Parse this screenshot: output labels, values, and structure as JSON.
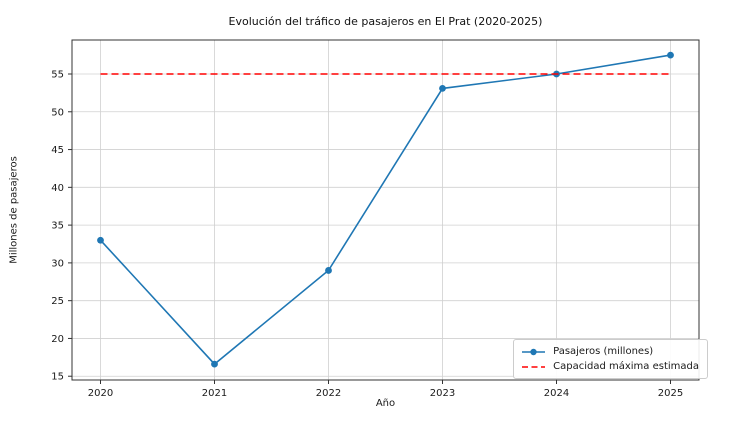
{
  "figure": {
    "background": "#ffffff"
  },
  "chart_data": {
    "type": "line",
    "title": "Evolución del tráfico de pasajeros en El Prat (2020-2025)",
    "xlabel": "Año",
    "ylabel": "Millones de pasajeros",
    "x": [
      2020,
      2021,
      2022,
      2023,
      2024,
      2025
    ],
    "xticks": [
      "2020",
      "2021",
      "2022",
      "2023",
      "2024",
      "2025"
    ],
    "yticks": [
      15,
      20,
      25,
      30,
      35,
      40,
      45,
      50,
      55
    ],
    "xlim": [
      2019.75,
      2025.25
    ],
    "ylim": [
      14.5,
      59.5
    ],
    "grid": true,
    "legend_position": "lower right",
    "series": [
      {
        "name": "Pasajeros (millones)",
        "values": [
          33.0,
          16.6,
          29.0,
          53.1,
          55.0,
          57.5
        ],
        "color": "#1f77b4",
        "style": "solid",
        "marker": "circle"
      },
      {
        "name": "Capacidad máxima estimada",
        "values": [
          55,
          55,
          55,
          55,
          55,
          55
        ],
        "color": "#ff0000",
        "style": "dashed",
        "marker": "none"
      }
    ],
    "capacity_line_y": 55,
    "grid_color": "#d0d0d0",
    "axis_color": "#333333",
    "text_color": "#1a1a1a"
  }
}
